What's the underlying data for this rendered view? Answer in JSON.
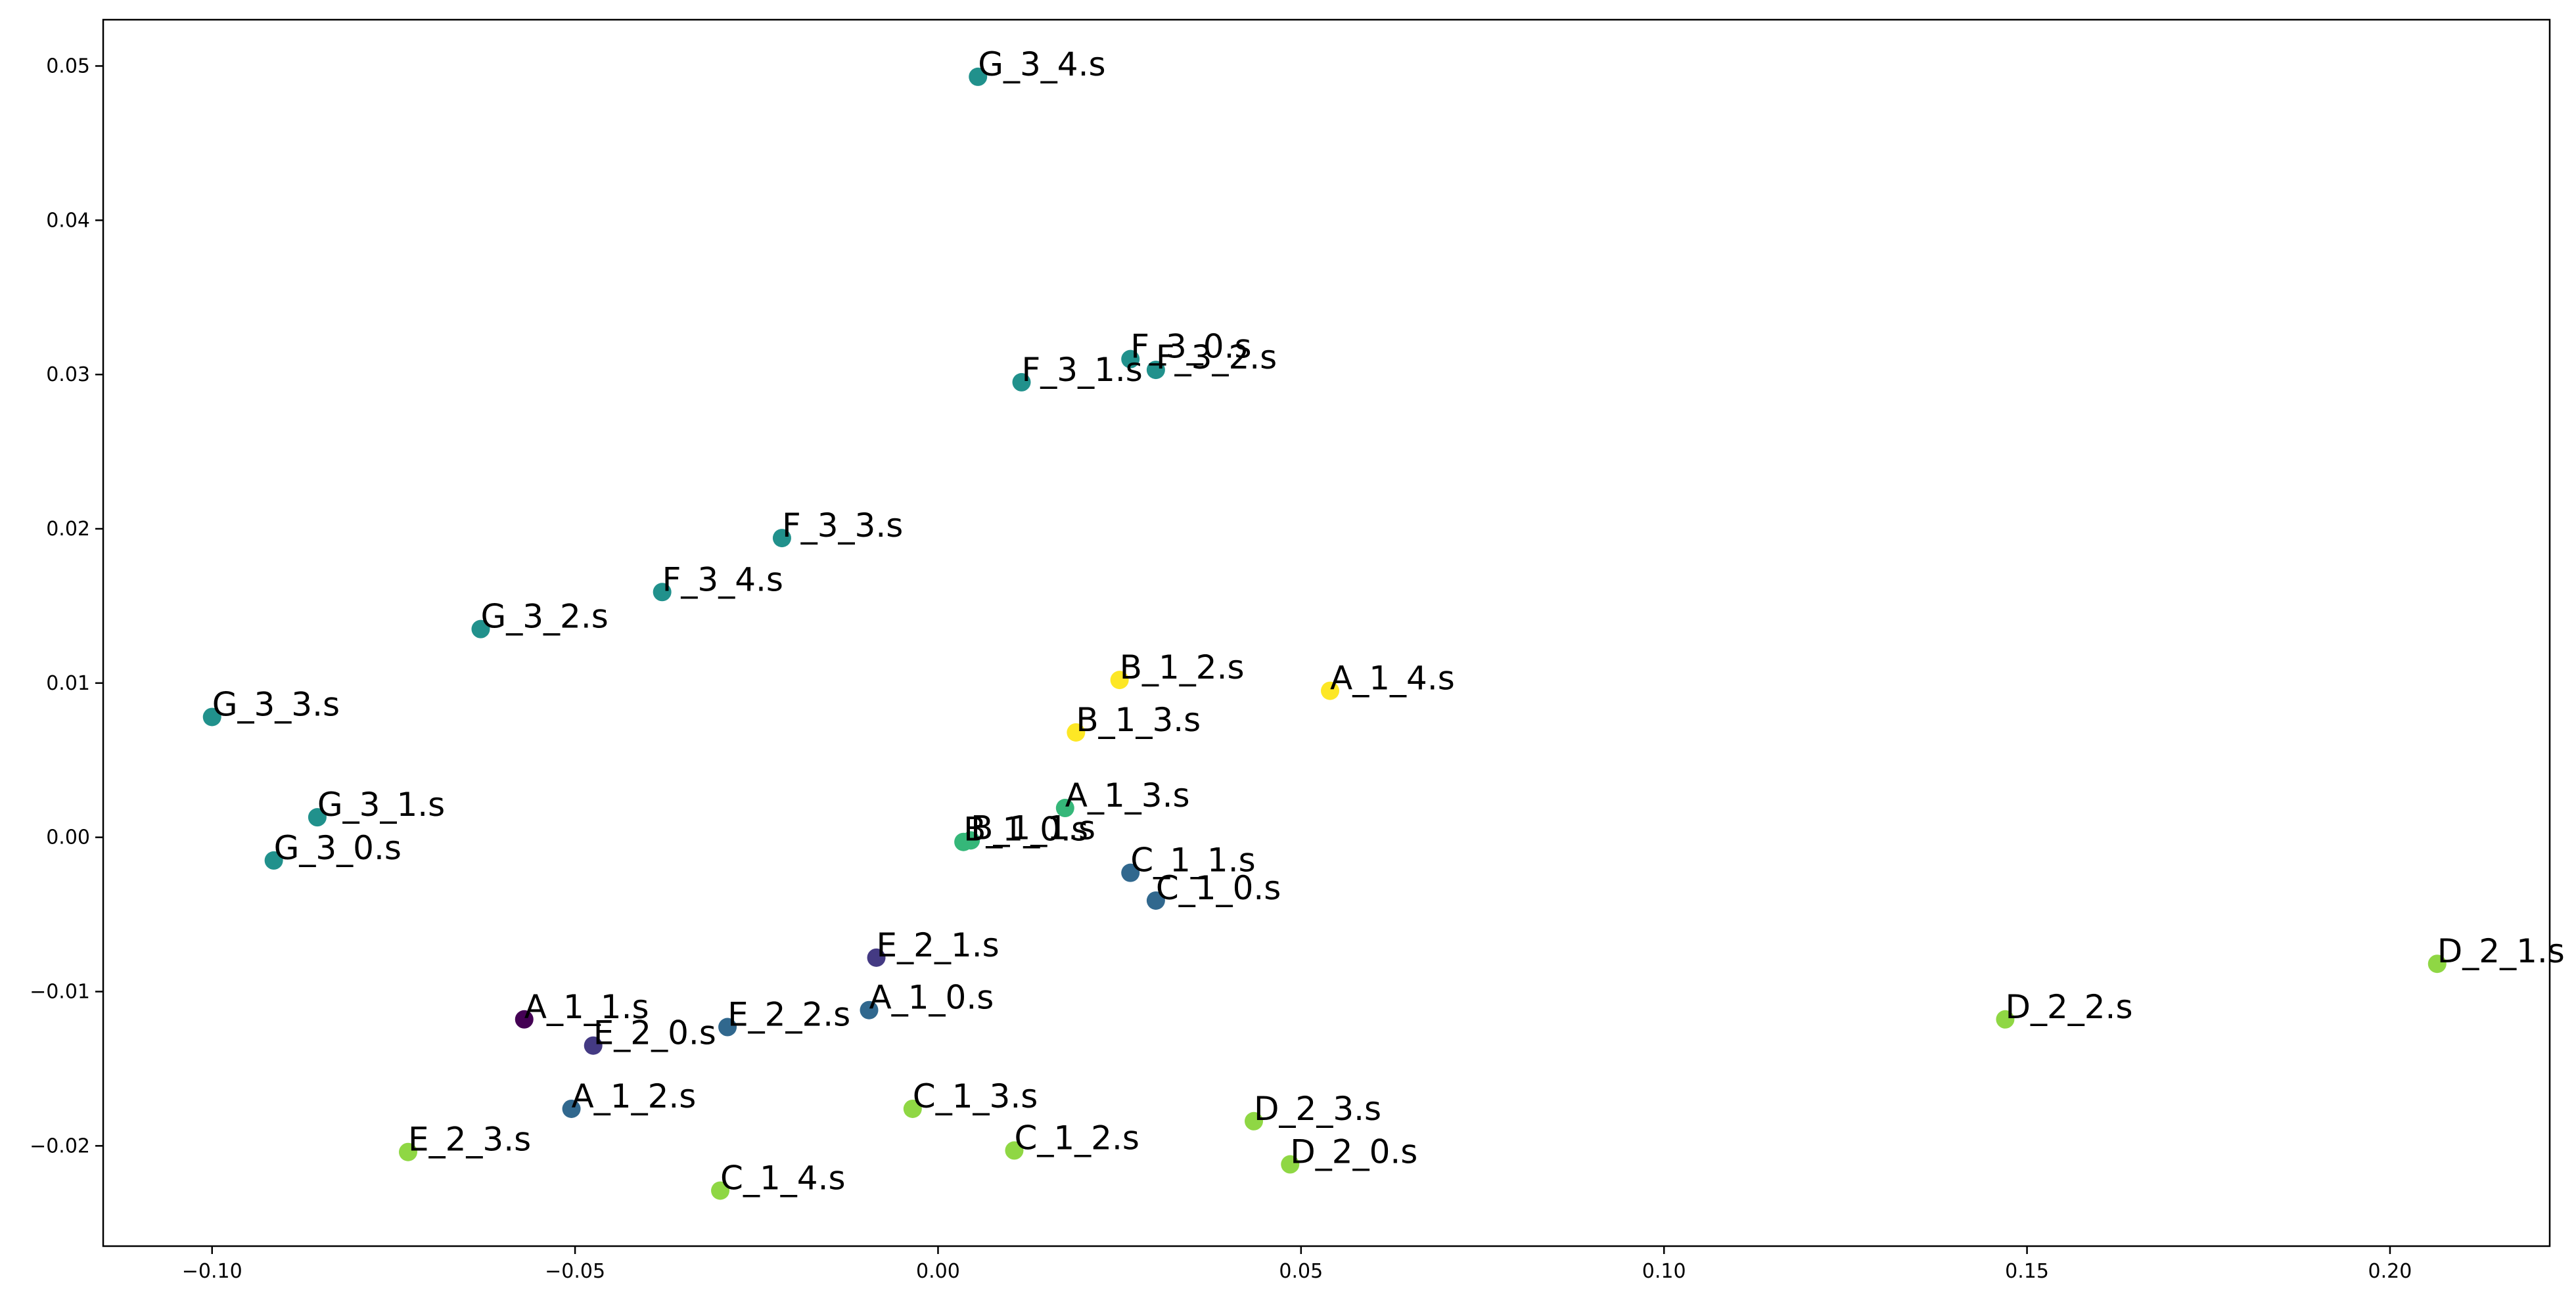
{
  "chart_data": {
    "type": "scatter",
    "title": "",
    "xlabel": "",
    "ylabel": "",
    "xlim": [
      -0.115,
      0.222
    ],
    "ylim": [
      -0.0265,
      0.053
    ],
    "xticks": [
      -0.1,
      -0.05,
      0.0,
      0.05,
      0.1,
      0.15,
      0.2
    ],
    "xtick_labels": [
      "−0.10",
      "−0.05",
      "0.00",
      "0.05",
      "0.10",
      "0.15",
      "0.20"
    ],
    "yticks": [
      -0.02,
      -0.01,
      0.0,
      0.01,
      0.02,
      0.03,
      0.04,
      0.05
    ],
    "ytick_labels": [
      "−0.02",
      "−0.01",
      "0.00",
      "0.01",
      "0.02",
      "0.03",
      "0.04",
      "0.05"
    ],
    "grid": false,
    "legend": "none",
    "points": [
      {
        "label": "G_3_4.s",
        "x": 0.0055,
        "y": 0.0493,
        "color": "#21918c"
      },
      {
        "label": "F_3_0.s",
        "x": 0.0265,
        "y": 0.031,
        "color": "#21918c"
      },
      {
        "label": "F_3_2.s",
        "x": 0.03,
        "y": 0.0303,
        "color": "#21918c"
      },
      {
        "label": "F_3_1.s",
        "x": 0.0115,
        "y": 0.0295,
        "color": "#21918c"
      },
      {
        "label": "F_3_3.s",
        "x": -0.0215,
        "y": 0.0194,
        "color": "#21918c"
      },
      {
        "label": "F_3_4.s",
        "x": -0.038,
        "y": 0.0159,
        "color": "#21918c"
      },
      {
        "label": "G_3_2.s",
        "x": -0.063,
        "y": 0.0135,
        "color": "#21918c"
      },
      {
        "label": "G_3_3.s",
        "x": -0.1,
        "y": 0.0078,
        "color": "#21918c"
      },
      {
        "label": "G_3_1.s",
        "x": -0.0855,
        "y": 0.0013,
        "color": "#21918c"
      },
      {
        "label": "G_3_0.s",
        "x": -0.0915,
        "y": -0.0015,
        "color": "#21918c"
      },
      {
        "label": "B_1_2.s",
        "x": 0.025,
        "y": 0.0102,
        "color": "#fde725"
      },
      {
        "label": "B_1_3.s",
        "x": 0.019,
        "y": 0.0068,
        "color": "#fde725"
      },
      {
        "label": "A_1_4.s",
        "x": 0.054,
        "y": 0.0095,
        "color": "#fde725"
      },
      {
        "label": "A_1_3.s",
        "x": 0.0175,
        "y": 0.0019,
        "color": "#35b779"
      },
      {
        "label": "B_1_0.s",
        "x": 0.0035,
        "y": -0.0003,
        "color": "#35b779"
      },
      {
        "label": "B_1_1.s",
        "x": 0.0045,
        "y": -0.0002,
        "color": "#35b779"
      },
      {
        "label": "C_1_1.s",
        "x": 0.0265,
        "y": -0.0023,
        "color": "#31688e"
      },
      {
        "label": "C_1_0.s",
        "x": 0.03,
        "y": -0.0041,
        "color": "#31688e"
      },
      {
        "label": "E_2_1.s",
        "x": -0.0085,
        "y": -0.0078,
        "color": "#443a83"
      },
      {
        "label": "A_1_0.s",
        "x": -0.0095,
        "y": -0.0112,
        "color": "#31688e"
      },
      {
        "label": "A_1_1.s",
        "x": -0.057,
        "y": -0.0118,
        "color": "#440154"
      },
      {
        "label": "E_2_2.s",
        "x": -0.029,
        "y": -0.0123,
        "color": "#31688e"
      },
      {
        "label": "E_2_0.s",
        "x": -0.0475,
        "y": -0.0135,
        "color": "#443a83"
      },
      {
        "label": "A_1_2.s",
        "x": -0.0505,
        "y": -0.0176,
        "color": "#31688e"
      },
      {
        "label": "C_1_3.s",
        "x": -0.0035,
        "y": -0.0176,
        "color": "#8fd744"
      },
      {
        "label": "E_2_3.s",
        "x": -0.073,
        "y": -0.0204,
        "color": "#8fd744"
      },
      {
        "label": "C_1_2.s",
        "x": 0.0105,
        "y": -0.0203,
        "color": "#8fd744"
      },
      {
        "label": "C_1_4.s",
        "x": -0.03,
        "y": -0.0229,
        "color": "#8fd744"
      },
      {
        "label": "D_2_3.s",
        "x": 0.0435,
        "y": -0.0184,
        "color": "#8fd744"
      },
      {
        "label": "D_2_0.s",
        "x": 0.0485,
        "y": -0.0212,
        "color": "#8fd744"
      },
      {
        "label": "D_2_2.s",
        "x": 0.147,
        "y": -0.0118,
        "color": "#8fd744"
      },
      {
        "label": "D_2_1.s",
        "x": 0.2065,
        "y": -0.0082,
        "color": "#8fd744"
      }
    ]
  }
}
